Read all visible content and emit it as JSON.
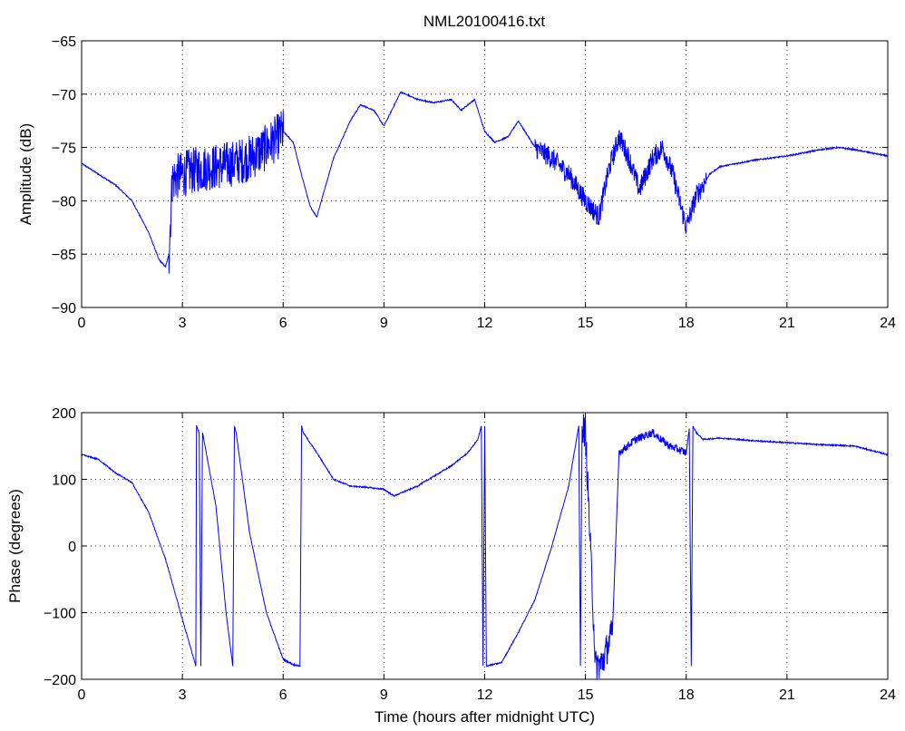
{
  "figure": {
    "title": "NML20100416.txt",
    "series_color": "#0000ff"
  },
  "chart_data": [
    {
      "type": "line",
      "title": "NML20100416.txt",
      "xlabel": "",
      "ylabel": "Amplitude (dB)",
      "xlim": [
        0,
        24
      ],
      "ylim": [
        -90,
        -65
      ],
      "xticks": [
        0,
        3,
        6,
        9,
        12,
        15,
        18,
        21,
        24
      ],
      "yticks": [
        -90,
        -85,
        -80,
        -75,
        -70,
        -65
      ],
      "grid": true,
      "x": [
        0,
        0.5,
        1,
        1.5,
        2,
        2.3,
        2.5,
        2.6,
        2.7,
        3,
        3.5,
        4,
        4.5,
        5,
        5.5,
        6,
        6.3,
        6.5,
        6.8,
        7,
        7.5,
        8,
        8.3,
        8.7,
        9,
        9.5,
        10,
        10.5,
        11,
        11.3,
        11.7,
        12,
        12.3,
        12.7,
        13,
        13.5,
        14,
        14.5,
        15,
        15.4,
        15.7,
        16,
        16.3,
        16.6,
        17,
        17.3,
        17.6,
        18,
        18.3,
        18.7,
        19,
        20,
        21,
        22,
        22.5,
        23,
        24
      ],
      "y": [
        -76.5,
        -77.5,
        -78.5,
        -80,
        -83,
        -85.5,
        -86.2,
        -85,
        -78,
        -77.5,
        -77,
        -76.8,
        -76.5,
        -76,
        -75,
        -73.5,
        -74.5,
        -77,
        -80.5,
        -81.5,
        -76,
        -72.5,
        -71,
        -71.5,
        -73,
        -69.8,
        -70.5,
        -70.8,
        -70.5,
        -71.5,
        -70.5,
        -73.5,
        -74.5,
        -74,
        -72.5,
        -75,
        -76,
        -77.5,
        -80,
        -81.5,
        -77,
        -74,
        -76,
        -79,
        -76,
        -75,
        -77.5,
        -82.5,
        -79.5,
        -77.5,
        -76.8,
        -76.2,
        -75.8,
        -75.2,
        -75,
        -75.2,
        -75.8
      ],
      "noise": [
        [
          2.6,
          6.0,
          2.2
        ],
        [
          13.5,
          18.6,
          1.0
        ]
      ],
      "series": [
        {
          "name": "",
          "color": "#0000ff"
        }
      ]
    },
    {
      "type": "line",
      "title": "",
      "xlabel": "Time (hours after midnight UTC)",
      "ylabel": "Phase (degrees)",
      "xlim": [
        0,
        24
      ],
      "ylim": [
        -200,
        200
      ],
      "xticks": [
        0,
        3,
        6,
        9,
        12,
        15,
        18,
        21,
        24
      ],
      "yticks": [
        -200,
        -100,
        0,
        100,
        200
      ],
      "grid": true,
      "x": [
        0,
        0.5,
        1,
        1.5,
        2,
        2.5,
        3,
        3.4,
        3.42,
        3.5,
        3.55,
        3.6,
        4,
        4.3,
        4.5,
        4.55,
        4.6,
        5,
        5.5,
        6,
        6.3,
        6.5,
        6.55,
        6.6,
        7,
        7.5,
        8,
        8.5,
        9,
        9.3,
        10,
        10.5,
        11,
        11.5,
        11.8,
        11.9,
        11.95,
        12.0,
        12.05,
        12.5,
        13,
        13.5,
        14,
        14.5,
        14.8,
        14.85,
        14.9,
        15.0,
        15.3,
        15.5,
        15.8,
        16,
        16.5,
        17,
        17.5,
        18,
        18.1,
        18.15,
        18.2,
        18.3,
        18.5,
        19,
        20,
        21,
        22,
        23,
        24
      ],
      "y": [
        137,
        130,
        110,
        95,
        50,
        -20,
        -110,
        -180,
        180,
        170,
        -180,
        170,
        60,
        -100,
        -180,
        180,
        170,
        20,
        -100,
        -170,
        -178,
        -180,
        180,
        170,
        140,
        100,
        90,
        88,
        85,
        75,
        90,
        105,
        120,
        140,
        160,
        180,
        -180,
        180,
        -180,
        -175,
        -130,
        -80,
        0,
        90,
        180,
        -180,
        180,
        170,
        -180,
        -175,
        -130,
        140,
        160,
        170,
        150,
        140,
        180,
        -180,
        180,
        170,
        160,
        162,
        158,
        155,
        152,
        150,
        137
      ],
      "noise": [
        [
          14.9,
          16.0,
          25
        ],
        [
          16.0,
          18.0,
          6
        ]
      ],
      "series": [
        {
          "name": "",
          "color": "#0000ff"
        }
      ]
    }
  ]
}
